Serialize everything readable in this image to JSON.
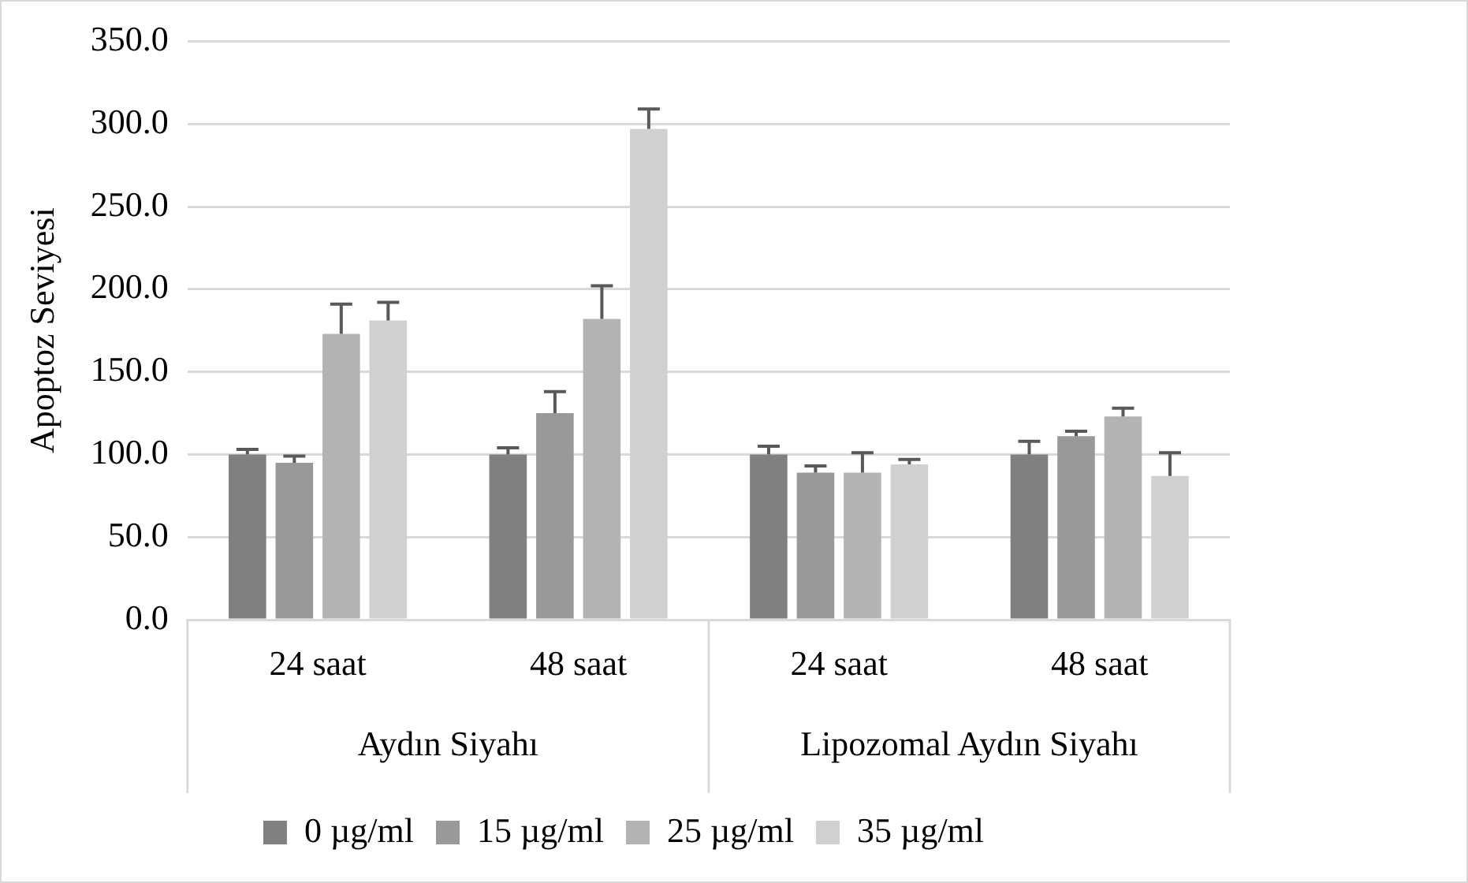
{
  "chart_data": {
    "type": "bar",
    "ylabel": "Apoptoz Seviyesi",
    "categories": [
      "24 saat",
      "48 saat",
      "24 saat",
      "48 saat"
    ],
    "annotations": [
      "Aydın Siyahı",
      "Lipozomal Aydın Siyahı"
    ],
    "series": [
      {
        "name": "0 µg/ml",
        "color": "#808080",
        "values": [
          100,
          100,
          100,
          100
        ],
        "errors": [
          [
            100,
            103
          ],
          [
            100,
            104
          ],
          [
            100,
            105
          ],
          [
            100,
            108
          ]
        ]
      },
      {
        "name": "15 µg/ml",
        "color": "#999999",
        "values": [
          95,
          125,
          89,
          111
        ],
        "errors": [
          [
            95,
            99
          ],
          [
            125,
            138
          ],
          [
            89,
            93
          ],
          [
            111,
            114
          ]
        ]
      },
      {
        "name": "25 µg/ml",
        "color": "#b3b3b3",
        "values": [
          173,
          182,
          89,
          123
        ],
        "errors": [
          [
            173,
            191
          ],
          [
            182,
            202
          ],
          [
            89,
            101
          ],
          [
            123,
            128
          ]
        ]
      },
      {
        "name": "35 µg/ml",
        "color": "#d0d0d0",
        "values": [
          181,
          297,
          94,
          87
        ],
        "errors": [
          [
            181,
            192
          ],
          [
            297,
            309
          ],
          [
            94,
            97
          ],
          [
            87,
            101
          ]
        ]
      }
    ],
    "ylim": [
      0,
      350
    ],
    "yticks": [
      {
        "value": 0,
        "label": "0.0"
      },
      {
        "value": 50,
        "label": "50.0"
      },
      {
        "value": 100,
        "label": "100.0"
      },
      {
        "value": 150,
        "label": "150.0"
      },
      {
        "value": 200,
        "label": "200.0"
      },
      {
        "value": 250,
        "label": "250.0"
      },
      {
        "value": 300,
        "label": "300.0"
      },
      {
        "value": 350,
        "label": "350.0"
      }
    ],
    "grid": "y",
    "legend": "bottom"
  }
}
